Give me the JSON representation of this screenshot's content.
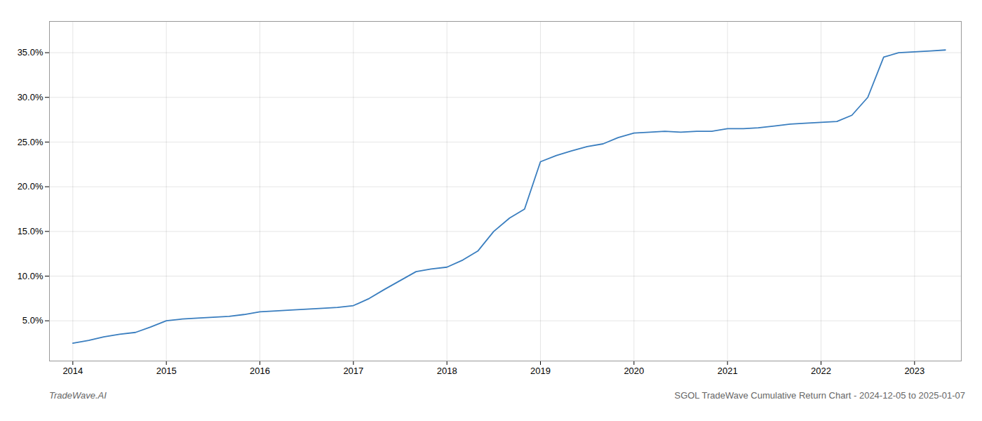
{
  "chart_data": {
    "type": "line",
    "x": [
      2014.0,
      2014.17,
      2014.33,
      2014.5,
      2014.67,
      2014.83,
      2015.0,
      2015.17,
      2015.33,
      2015.5,
      2015.67,
      2015.83,
      2016.0,
      2016.17,
      2016.33,
      2016.5,
      2016.67,
      2016.83,
      2017.0,
      2017.17,
      2017.33,
      2017.5,
      2017.67,
      2017.83,
      2018.0,
      2018.17,
      2018.33,
      2018.5,
      2018.67,
      2018.83,
      2019.0,
      2019.17,
      2019.33,
      2019.5,
      2019.67,
      2019.83,
      2020.0,
      2020.17,
      2020.33,
      2020.5,
      2020.67,
      2020.83,
      2021.0,
      2021.17,
      2021.33,
      2021.5,
      2021.67,
      2021.83,
      2022.0,
      2022.17,
      2022.33,
      2022.5,
      2022.67,
      2022.83,
      2023.0,
      2023.17,
      2023.33
    ],
    "values": [
      2.5,
      2.8,
      3.2,
      3.5,
      3.7,
      4.3,
      5.0,
      5.2,
      5.3,
      5.4,
      5.5,
      5.7,
      6.0,
      6.1,
      6.2,
      6.3,
      6.4,
      6.5,
      6.7,
      7.5,
      8.5,
      9.5,
      10.5,
      10.8,
      11.0,
      11.8,
      12.8,
      15.0,
      16.5,
      17.5,
      22.8,
      23.5,
      24.0,
      24.5,
      24.8,
      25.5,
      26.0,
      26.1,
      26.2,
      26.1,
      26.2,
      26.2,
      26.5,
      26.5,
      26.6,
      26.8,
      27.0,
      27.1,
      27.2,
      27.3,
      28.0,
      30.0,
      34.5,
      35.0,
      35.1,
      35.2,
      35.3
    ],
    "color": "#3a7ebf",
    "xlim": [
      2013.75,
      2023.5
    ],
    "ylim": [
      0.5,
      38.5
    ],
    "xticks": [
      2014,
      2015,
      2016,
      2017,
      2018,
      2019,
      2020,
      2021,
      2022,
      2023
    ],
    "yticks": [
      {
        "value": 5.0,
        "label": "5.0%"
      },
      {
        "value": 10.0,
        "label": "10.0%"
      },
      {
        "value": 15.0,
        "label": "15.0%"
      },
      {
        "value": 20.0,
        "label": "20.0%"
      },
      {
        "value": 25.0,
        "label": "25.0%"
      },
      {
        "value": 30.0,
        "label": "30.0%"
      },
      {
        "value": 35.0,
        "label": "35.0%"
      }
    ],
    "grid": true,
    "annotations": [
      "TradeWave.AI",
      "SGOL TradeWave Cumulative Return Chart - 2024-12-05 to 2025-01-07"
    ]
  }
}
